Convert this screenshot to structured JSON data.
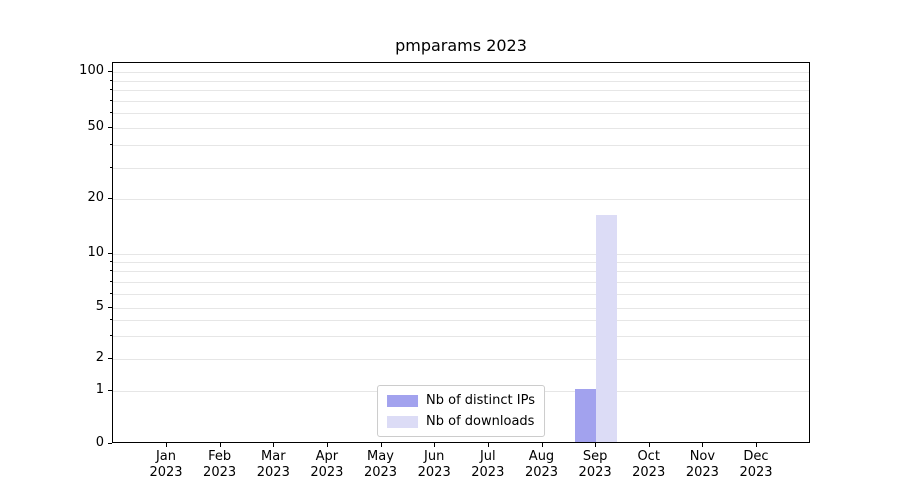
{
  "chart_data": {
    "type": "bar",
    "title": "pmparams 2023",
    "categories": [
      "Jan 2023",
      "Feb 2023",
      "Mar 2023",
      "Apr 2023",
      "May 2023",
      "Jun 2023",
      "Jul 2023",
      "Aug 2023",
      "Sep 2023",
      "Oct 2023",
      "Nov 2023",
      "Dec 2023"
    ],
    "series": [
      {
        "name": "Nb of distinct IPs",
        "color": "#a2a2ee",
        "values": [
          0,
          0,
          0,
          0,
          0,
          0,
          0,
          0,
          1,
          0,
          0,
          0
        ]
      },
      {
        "name": "Nb of downloads",
        "color": "#dcdcf6",
        "values": [
          0,
          0,
          0,
          0,
          0,
          0,
          0,
          0,
          16,
          0,
          0,
          0
        ]
      }
    ],
    "yscale": "symlog",
    "ylim": [
      0,
      110
    ],
    "ytick_values": [
      0,
      1,
      2,
      5,
      10,
      20,
      50,
      100
    ],
    "ytick_labels": [
      "0",
      "1",
      "2",
      "5",
      "10",
      "20",
      "50",
      "100"
    ],
    "minor_tick_values": [
      3,
      4,
      6,
      7,
      8,
      9,
      30,
      40,
      60,
      70,
      80,
      90
    ],
    "grid": true,
    "legend_position": "lower center"
  }
}
